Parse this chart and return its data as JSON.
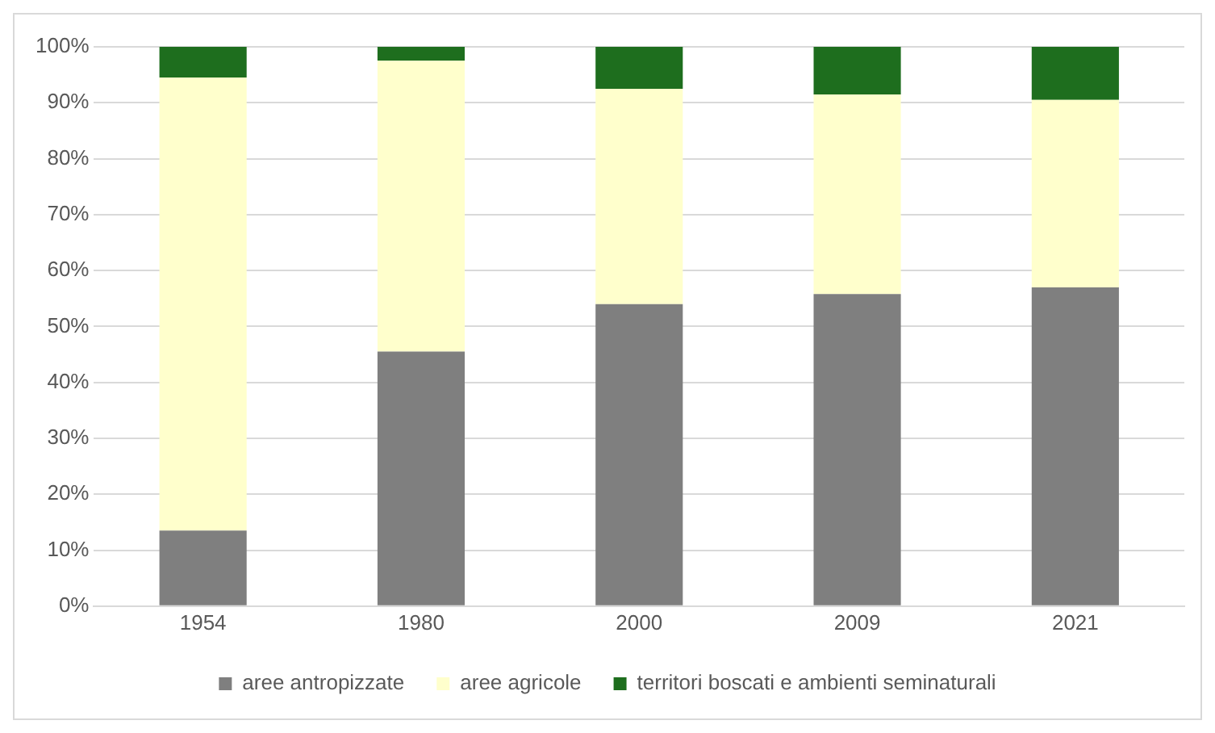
{
  "chart_data": {
    "type": "bar",
    "stacked": true,
    "categories": [
      "1954",
      "1980",
      "2000",
      "2009",
      "2021"
    ],
    "series": [
      {
        "name": "aree antropizzate",
        "color": "#7f7f7f",
        "values": [
          13.5,
          45.5,
          54,
          55.8,
          57
        ]
      },
      {
        "name": "aree agricole",
        "color": "#ffffcc",
        "values": [
          81,
          52,
          38.5,
          35.7,
          33.5
        ]
      },
      {
        "name": "territori boscati e ambienti seminaturali",
        "color": "#1e6e1e",
        "values": [
          5.5,
          2.5,
          7.5,
          8.5,
          9.5
        ]
      }
    ],
    "ylim": [
      0,
      100
    ],
    "yticks": [
      {
        "value": 0,
        "label": "0%"
      },
      {
        "value": 10,
        "label": "10%"
      },
      {
        "value": 20,
        "label": "20%"
      },
      {
        "value": 30,
        "label": "30%"
      },
      {
        "value": 40,
        "label": "40%"
      },
      {
        "value": 50,
        "label": "50%"
      },
      {
        "value": 60,
        "label": "60%"
      },
      {
        "value": 70,
        "label": "70%"
      },
      {
        "value": 80,
        "label": "80%"
      },
      {
        "value": 90,
        "label": "90%"
      },
      {
        "value": 100,
        "label": "100%"
      }
    ],
    "grid": "y",
    "legend": "bottom"
  }
}
